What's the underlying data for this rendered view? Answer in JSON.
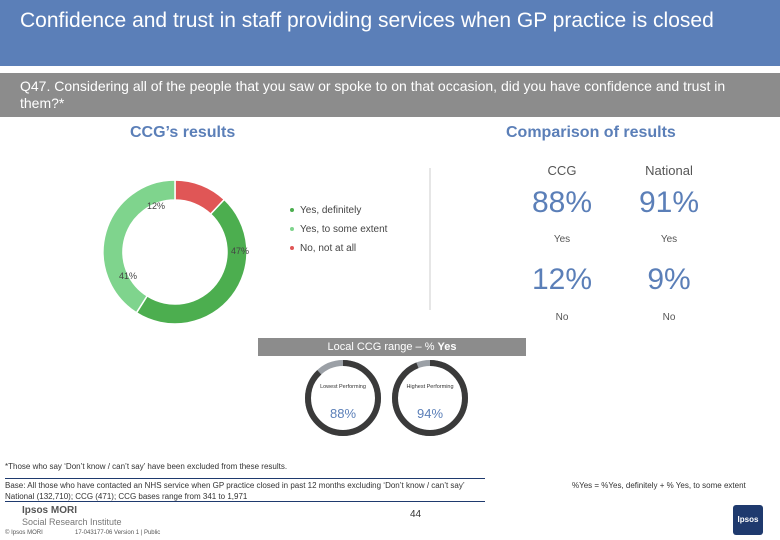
{
  "header": {
    "title": "Confidence and trust in staff providing services when GP practice is closed",
    "question": "Q47. Considering all of the people that you saw or spoke to on that occasion, did you have confidence and trust in them?*"
  },
  "ccg_section": {
    "title": "CCG’s results"
  },
  "comparison_section": {
    "title": "Comparison of results",
    "columns": [
      "CCG",
      "National"
    ],
    "rows": [
      {
        "ccg": "88%",
        "national": "91%",
        "label": "Yes"
      },
      {
        "ccg": "12%",
        "national": "9%",
        "label": "No"
      }
    ]
  },
  "range": {
    "title_prefix": "Local CCG range – % ",
    "title_emph": "Yes",
    "lowest_label": "Lowest Performing",
    "highest_label": "Highest Performing",
    "lowest_value": "88%",
    "highest_value": "94%"
  },
  "footnote": "*Those who say ‘Don’t know / can’t say’ have been excluded from these results.",
  "base": {
    "line1": "Base: All those who have contacted an NHS service when GP practice closed in past 12 months excluding ‘Don’t know / can’t say’",
    "line2": "National (132,710); CCG (471); CCG bases range from 341 to 1,971"
  },
  "yes_note": "%Yes = %Yes, definitely + % Yes, to some extent",
  "page_number": "44",
  "footer": {
    "logo_title": "Ipsos MORI",
    "logo_subtitle": "Social Research Institute",
    "copyright": "© Ipsos MORI",
    "code": "17-043177-06 Version 1 | Public",
    "brand_logo_text": "Ipsos"
  },
  "colors": {
    "header_blue": "#5b7fb8",
    "grey_bar": "#8c8c8c",
    "yes_definitely": "#4cae4f",
    "yes_some_extent": "#7fd48d",
    "no_not_at_all": "#e05656",
    "range_dark": "#3a3a3a",
    "range_light": "#9ba0a6"
  },
  "chart_data": {
    "type": "pie",
    "donut": true,
    "series": [
      {
        "name": "Yes, definitely",
        "value": 47,
        "label": "47%",
        "color": "#4cae4f"
      },
      {
        "name": "Yes, to some extent",
        "value": 41,
        "label": "41%",
        "color": "#7fd48d"
      },
      {
        "name": "No, not at all",
        "value": 12,
        "label": "12%",
        "color": "#e05656"
      }
    ],
    "legend_placement": "right"
  }
}
